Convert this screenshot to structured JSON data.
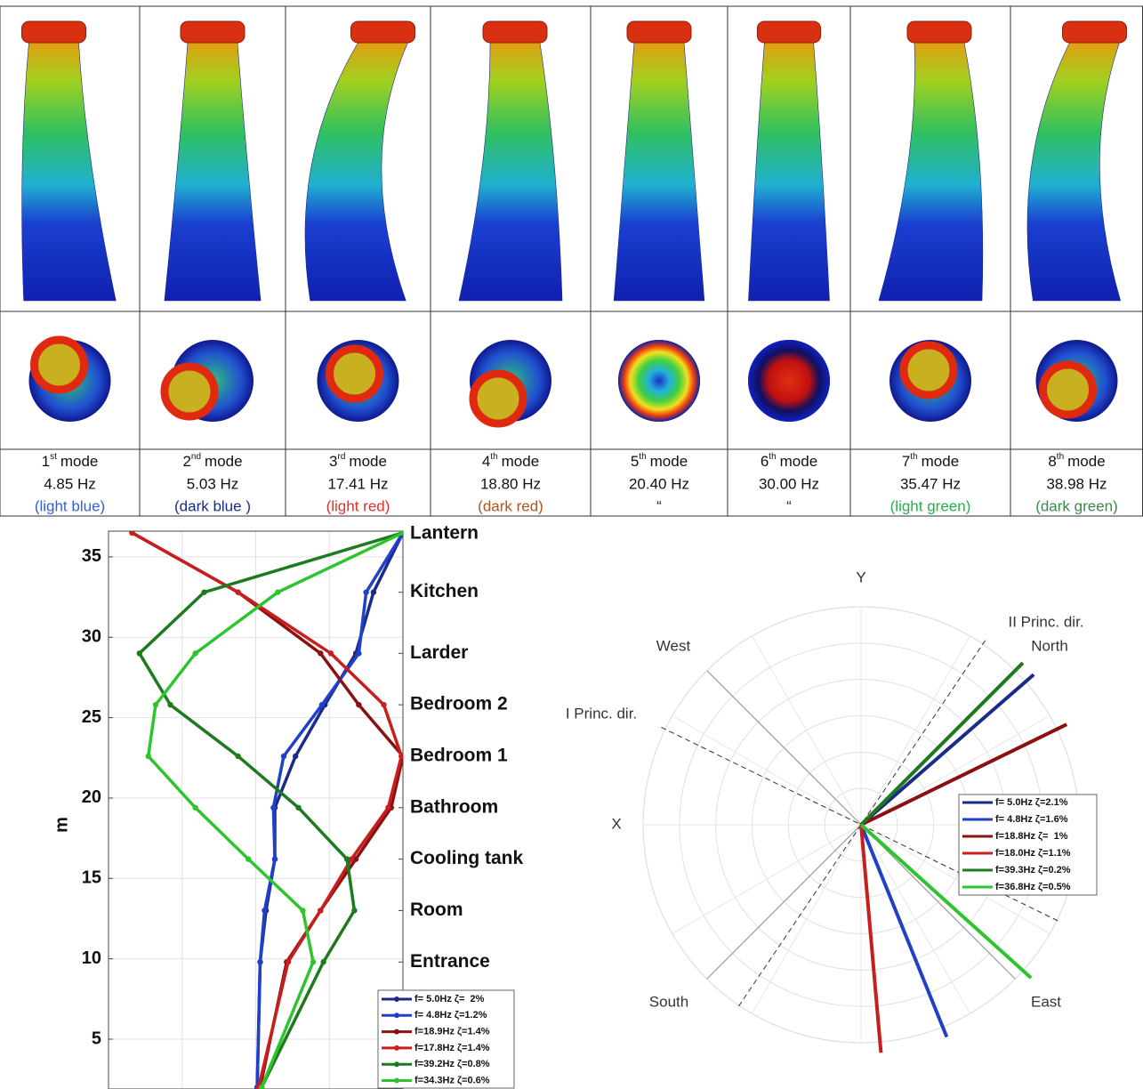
{
  "modes": [
    {
      "ordinal": "1",
      "suffix": "st",
      "word": "mode",
      "frequency": "4.85 Hz",
      "note": "(light blue)",
      "note_color": "#2f5fe0"
    },
    {
      "ordinal": "2",
      "suffix": "nd",
      "word": "mode",
      "frequency": "5.03 Hz",
      "note": "(dark blue )",
      "note_color": "#1a2a8a"
    },
    {
      "ordinal": "3",
      "suffix": "rd",
      "word": "mode",
      "frequency": "17.41 Hz",
      "note": "(light red)",
      "note_color": "#e0302a"
    },
    {
      "ordinal": "4",
      "suffix": "th",
      "word": "mode",
      "frequency": "18.80 Hz",
      "note": "(dark red)",
      "note_color": "#b5521a"
    },
    {
      "ordinal": "5",
      "suffix": "th",
      "word": "mode",
      "frequency": "20.40 Hz",
      "note": "“",
      "note_color": "#222222"
    },
    {
      "ordinal": "6",
      "suffix": "th",
      "word": "mode",
      "frequency": "30.00 Hz",
      "note": "“",
      "note_color": "#222222"
    },
    {
      "ordinal": "7",
      "suffix": "th",
      "word": "mode",
      "frequency": "35.47 Hz",
      "note": "(light green)",
      "note_color": "#22b04a"
    },
    {
      "ordinal": "8",
      "suffix": "th",
      "word": "mode",
      "frequency": "38.98 Hz",
      "note": "(dark green)",
      "note_color": "#3a8a4a"
    }
  ],
  "chart_data": [
    {
      "type": "line",
      "y_label": "m",
      "ylim": [
        1.9,
        36.6
      ],
      "yticks": [
        5,
        10,
        15,
        20,
        25,
        30,
        35
      ],
      "xlim": [
        -1,
        1
      ],
      "xticks": [
        -1,
        -0.5,
        0,
        0.5,
        1
      ],
      "grid": true,
      "legend": "lower right",
      "y": [
        2,
        9.8,
        13,
        16.2,
        19.4,
        22.6,
        25.8,
        29,
        32.8,
        36.5
      ],
      "floors": [
        {
          "label": "Entrance",
          "y": 9.8
        },
        {
          "label": "Room",
          "y": 13
        },
        {
          "label": "Cooling tank",
          "y": 16.2
        },
        {
          "label": "Bathroom",
          "y": 19.4
        },
        {
          "label": "Bedroom 1",
          "y": 22.6
        },
        {
          "label": "Bedroom 2",
          "y": 25.8
        },
        {
          "label": "Larder",
          "y": 29
        },
        {
          "label": "Kitchen",
          "y": 32.8
        },
        {
          "label": "Lantern",
          "y": 36.5
        }
      ],
      "series": [
        {
          "name": "f= 5.0Hz ζ=  2%",
          "color": "#1a2a8a",
          "x": [
            0.01,
            0.03,
            0.07,
            0.13,
            0.13,
            0.27,
            0.47,
            0.68,
            0.8,
            1
          ]
        },
        {
          "name": "f= 4.8Hz ζ=1.2%",
          "color": "#2040c8",
          "x": [
            0.01,
            0.03,
            0.06,
            0.13,
            0.12,
            0.19,
            0.45,
            0.7,
            0.75,
            1
          ]
        },
        {
          "name": "f=18.9Hz ζ=1.4%",
          "color": "#8b1010",
          "x": [
            0.03,
            0.21,
            0.44,
            0.68,
            0.92,
            1,
            0.7,
            0.44,
            -0.12,
            -0.84
          ]
        },
        {
          "name": "f=17.8Hz ζ=1.4%",
          "color": "#c81e1e",
          "x": [
            0.02,
            0.22,
            0.44,
            0.65,
            0.9,
            0.99,
            0.87,
            0.51,
            -0.12,
            -0.84
          ]
        },
        {
          "name": "f=39.2Hz ζ=0.8%",
          "color": "#1e7a1e",
          "x": [
            0.04,
            0.46,
            0.67,
            0.62,
            0.29,
            -0.12,
            -0.58,
            -0.79,
            -0.35,
            1
          ]
        },
        {
          "name": "f=34.3Hz ζ=0.6%",
          "color": "#2ec42e",
          "x": [
            0.04,
            0.39,
            0.32,
            -0.05,
            -0.41,
            -0.73,
            -0.68,
            -0.41,
            0.15,
            1
          ]
        }
      ]
    },
    {
      "type": "polar",
      "x_label": "X",
      "y_label": "Y",
      "legend": "right",
      "compass": [
        {
          "label": "North",
          "angle": 45
        },
        {
          "label": "West",
          "angle": 135
        },
        {
          "label": "South",
          "angle": 225
        },
        {
          "label": "East",
          "angle": 315
        }
      ],
      "principal_directions": [
        {
          "label": "I Princ. dir.",
          "angle": 154
        },
        {
          "label": "II Princ. dir.",
          "angle": 56
        }
      ],
      "series": [
        {
          "name": "f= 5.0Hz ζ=2.1%",
          "color": "#1a2a8a",
          "angle": 41
        },
        {
          "name": "f= 4.8Hz ζ=1.6%",
          "color": "#2040c8",
          "angle": -68
        },
        {
          "name": "f=18.8Hz ζ=  1%",
          "color": "#8b1010",
          "angle": 26
        },
        {
          "name": "f=18.0Hz ζ=1.1%",
          "color": "#c81e1e",
          "angle": -85
        },
        {
          "name": "f=39.3Hz ζ=0.2%",
          "color": "#1e7a1e",
          "angle": 45
        },
        {
          "name": "f=36.8Hz ζ=0.5%",
          "color": "#2ec42e",
          "angle": -42
        }
      ]
    }
  ]
}
